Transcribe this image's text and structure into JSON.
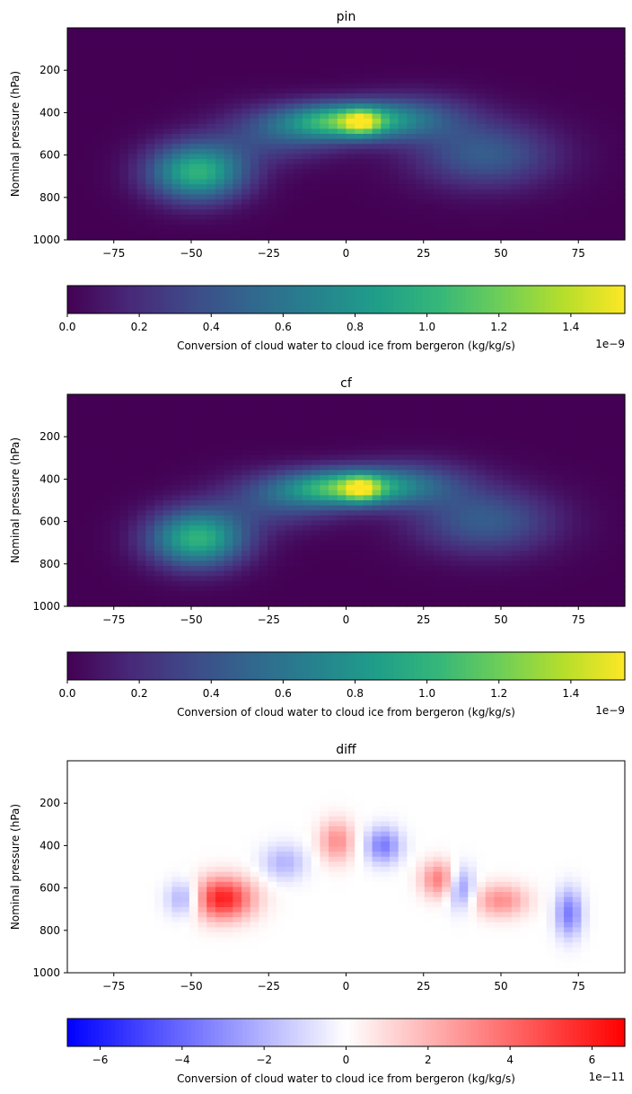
{
  "chart_data": [
    {
      "type": "heatmap",
      "title": "pin",
      "xlabel": "",
      "ylabel": "Nominal pressure (hPa)",
      "xlim": [
        -90,
        90
      ],
      "ylim": [
        1000,
        0
      ],
      "xticks": [
        -75,
        -50,
        -25,
        0,
        25,
        50,
        75
      ],
      "yticks": [
        200,
        400,
        600,
        800,
        1000
      ],
      "colormap": "viridis",
      "clim": [
        0,
        1.55e-09
      ],
      "colorbar": {
        "label": "Conversion of cloud water to cloud ice from bergeron (kg/kg/s)",
        "ticks": [
          "0.0",
          "0.2",
          "0.4",
          "0.6",
          "0.8",
          "1.0",
          "1.2",
          "1.4"
        ],
        "tick_values": [
          0,
          0.2,
          0.4,
          0.6,
          0.8,
          1.0,
          1.2,
          1.4
        ],
        "range": [
          0,
          1.55
        ],
        "offset": "1e−9"
      },
      "features": [
        {
          "lat": -48,
          "p": 680,
          "value": 1e-09,
          "lat_width": 11,
          "p_width": 95
        },
        {
          "lat": 0,
          "p": 440,
          "value": 1.05e-09,
          "lat_width": 14,
          "p_width": 60
        },
        {
          "lat": 5,
          "p": 445,
          "value": 5.5e-10,
          "lat_width": 4,
          "p_width": 40
        },
        {
          "lat": 45,
          "p": 600,
          "value": 4.5e-10,
          "lat_width": 16,
          "p_width": 110
        },
        {
          "lat": -22,
          "p": 500,
          "value": 3.5e-10,
          "lat_width": 14,
          "p_width": 90
        },
        {
          "lat": 22,
          "p": 420,
          "value": 3.5e-10,
          "lat_width": 14,
          "p_width": 80
        }
      ]
    },
    {
      "type": "heatmap",
      "title": "cf",
      "xlabel": "",
      "ylabel": "Nominal pressure (hPa)",
      "xlim": [
        -90,
        90
      ],
      "ylim": [
        1000,
        0
      ],
      "xticks": [
        -75,
        -50,
        -25,
        0,
        25,
        50,
        75
      ],
      "yticks": [
        200,
        400,
        600,
        800,
        1000
      ],
      "colormap": "viridis",
      "clim": [
        0,
        1.55e-09
      ],
      "colorbar": {
        "label": "Conversion of cloud water to cloud ice from bergeron (kg/kg/s)",
        "ticks": [
          "0.0",
          "0.2",
          "0.4",
          "0.6",
          "0.8",
          "1.0",
          "1.2",
          "1.4"
        ],
        "tick_values": [
          0,
          0.2,
          0.4,
          0.6,
          0.8,
          1.0,
          1.2,
          1.4
        ],
        "range": [
          0,
          1.55
        ],
        "offset": "1e−9"
      },
      "features": [
        {
          "lat": -48,
          "p": 680,
          "value": 1e-09,
          "lat_width": 11,
          "p_width": 95
        },
        {
          "lat": 0,
          "p": 440,
          "value": 1.05e-09,
          "lat_width": 14,
          "p_width": 60
        },
        {
          "lat": 5,
          "p": 445,
          "value": 5.5e-10,
          "lat_width": 4,
          "p_width": 40
        },
        {
          "lat": 45,
          "p": 600,
          "value": 4.5e-10,
          "lat_width": 16,
          "p_width": 110
        },
        {
          "lat": -22,
          "p": 500,
          "value": 3.5e-10,
          "lat_width": 14,
          "p_width": 90
        },
        {
          "lat": 22,
          "p": 420,
          "value": 3.5e-10,
          "lat_width": 14,
          "p_width": 80
        }
      ]
    },
    {
      "type": "heatmap",
      "title": "diff",
      "xlabel": "",
      "ylabel": "Nominal pressure (hPa)",
      "xlim": [
        -90,
        90
      ],
      "ylim": [
        1000,
        0
      ],
      "xticks": [
        -75,
        -50,
        -25,
        0,
        25,
        50,
        75
      ],
      "yticks": [
        200,
        400,
        600,
        800,
        1000
      ],
      "colormap": "bwr",
      "clim": [
        -6.8e-11,
        6.8e-11
      ],
      "colorbar": {
        "label": "Conversion of cloud water to cloud ice from bergeron (kg/kg/s)",
        "ticks": [
          "−6",
          "−4",
          "−2",
          "0",
          "2",
          "4",
          "6"
        ],
        "tick_values": [
          -6,
          -4,
          -2,
          0,
          2,
          4,
          6
        ],
        "range": [
          -6.8,
          6.8
        ],
        "offset": "1e−11"
      },
      "features": [
        {
          "lat": -40,
          "p": 650,
          "value": 6e-11,
          "lat_width": 7,
          "p_width": 70
        },
        {
          "lat": -3,
          "p": 380,
          "value": 3e-11,
          "lat_width": 4,
          "p_width": 70
        },
        {
          "lat": 30,
          "p": 560,
          "value": 3.5e-11,
          "lat_width": 4,
          "p_width": 60
        },
        {
          "lat": 50,
          "p": 660,
          "value": 3e-11,
          "lat_width": 6,
          "p_width": 55
        },
        {
          "lat": 12,
          "p": 400,
          "value": -3.5e-11,
          "lat_width": 4,
          "p_width": 60
        },
        {
          "lat": 72,
          "p": 720,
          "value": -3.5e-11,
          "lat_width": 3,
          "p_width": 80
        },
        {
          "lat": -52,
          "p": 650,
          "value": -3e-11,
          "lat_width": 4,
          "p_width": 60
        },
        {
          "lat": 37,
          "p": 600,
          "value": -3e-11,
          "lat_width": 3,
          "p_width": 70
        },
        {
          "lat": -20,
          "p": 480,
          "value": -2e-11,
          "lat_width": 5,
          "p_width": 60
        }
      ]
    }
  ]
}
